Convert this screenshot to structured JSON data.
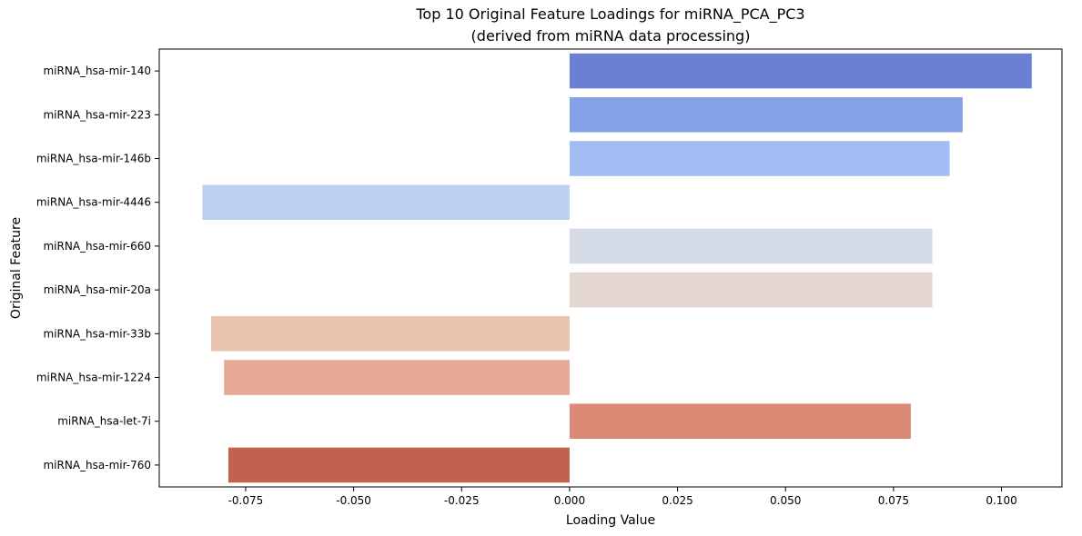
{
  "chart_data": {
    "type": "bar",
    "orientation": "horizontal",
    "title": "Top 10 Original Feature Loadings for miRNA_PCA_PC3",
    "subtitle": "(derived from miRNA data processing)",
    "xlabel": "Loading Value",
    "ylabel": "Original Feature",
    "xlim": [
      -0.095,
      0.114
    ],
    "xticks": [
      -0.075,
      -0.05,
      -0.025,
      0.0,
      0.025,
      0.05,
      0.075,
      0.1
    ],
    "xtick_labels": [
      "-0.075",
      "-0.050",
      "-0.025",
      "0.000",
      "0.025",
      "0.050",
      "0.075",
      "0.100"
    ],
    "grid": false,
    "legend": "none",
    "categories": [
      "miRNA_hsa-mir-140",
      "miRNA_hsa-mir-223",
      "miRNA_hsa-mir-146b",
      "miRNA_hsa-mir-4446",
      "miRNA_hsa-mir-660",
      "miRNA_hsa-mir-20a",
      "miRNA_hsa-mir-33b",
      "miRNA_hsa-mir-1224",
      "miRNA_hsa-let-7i",
      "miRNA_hsa-mir-760"
    ],
    "values": [
      0.107,
      0.091,
      0.088,
      -0.085,
      0.084,
      0.084,
      -0.083,
      -0.08,
      0.079,
      -0.079
    ],
    "colors": [
      "#6a80d3",
      "#86a0e5",
      "#a2bcf4",
      "#bdd0f0",
      "#d4dbe6",
      "#e4d7cf",
      "#ebc4b0",
      "#e6a993",
      "#da8974",
      "#c3614f"
    ]
  }
}
